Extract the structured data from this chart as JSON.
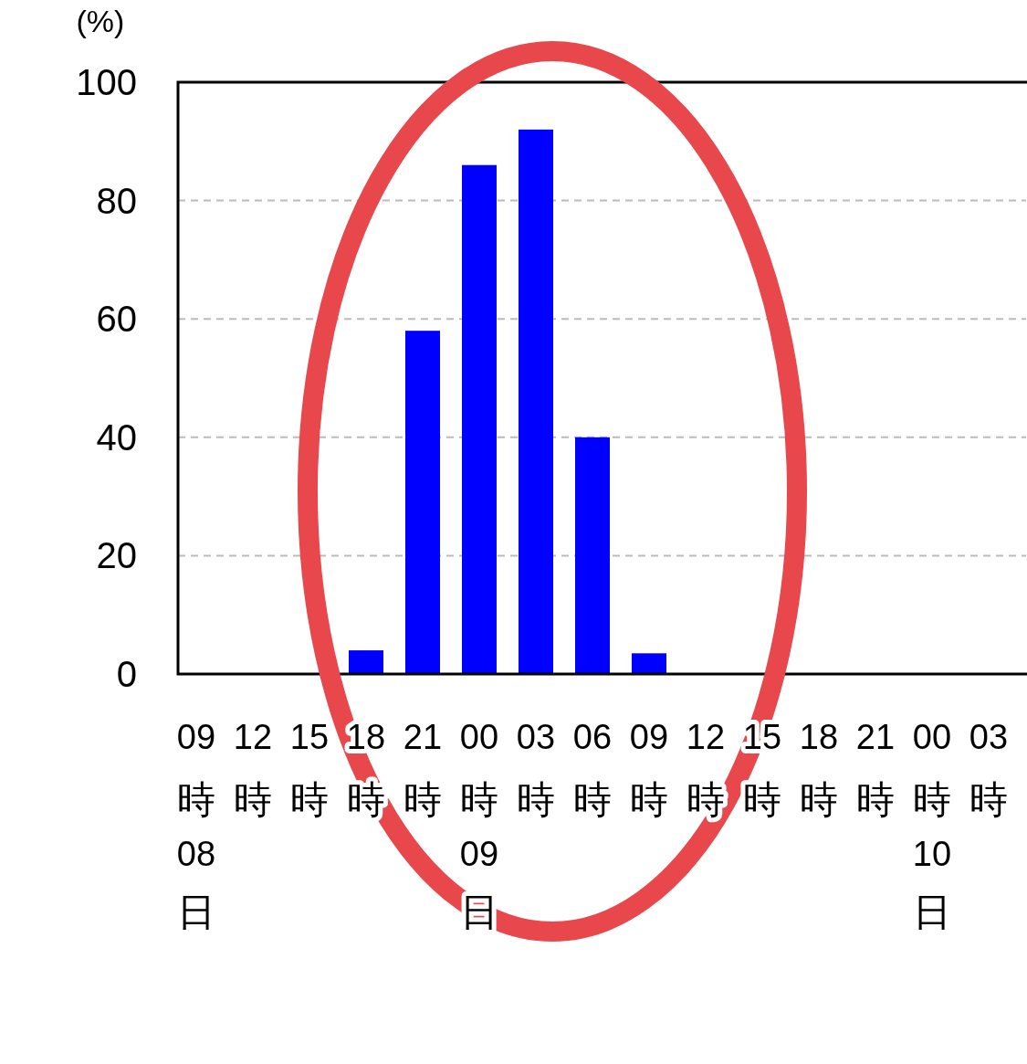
{
  "chart_data": {
    "type": "bar",
    "ylabel": "(%)",
    "categories": [
      "09時\n08日",
      "12時",
      "15時",
      "18時",
      "21時",
      "00時\n09日",
      "03時",
      "06時",
      "09時",
      "12時",
      "15時",
      "18時",
      "21時",
      "00時\n10日",
      "03時"
    ],
    "values": [
      0,
      0,
      0,
      4,
      58,
      86,
      92,
      40,
      3.5,
      0,
      0,
      0,
      0,
      0,
      0
    ],
    "color": "#0000ff",
    "ylim": [
      0,
      100
    ],
    "yticks": [
      0,
      20,
      40,
      60,
      80,
      100
    ],
    "grid": "y"
  }
}
